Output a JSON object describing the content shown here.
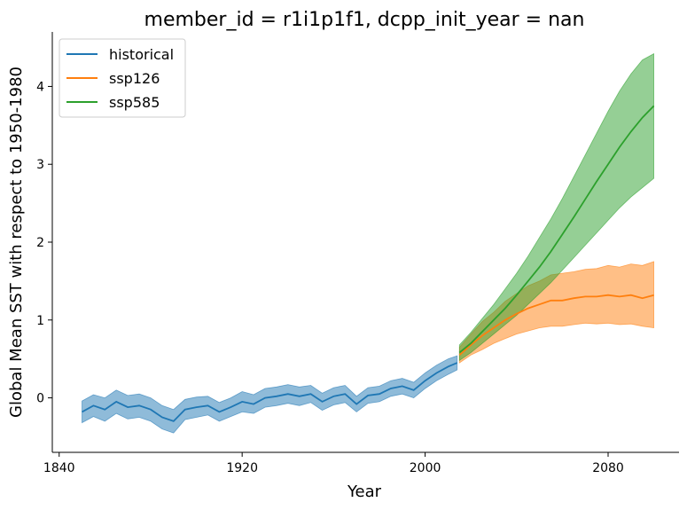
{
  "chart_data": {
    "type": "line",
    "title": "member_id = r1i1p1f1, dcpp_init_year = nan",
    "xlabel": "Year",
    "ylabel": "Global Mean SST with respect to 1950-1980",
    "xlim": [
      1837,
      2111
    ],
    "ylim": [
      -0.7,
      4.7
    ],
    "xticks": [
      1840,
      1920,
      2000,
      2080
    ],
    "yticks": [
      0,
      1,
      2,
      3,
      4
    ],
    "grid": false,
    "legend_position": "top-left",
    "series": [
      {
        "name": "historical",
        "color": "#1f77b4",
        "band_color": "#1f77b4",
        "x": [
          1850,
          1855,
          1860,
          1865,
          1870,
          1875,
          1880,
          1885,
          1890,
          1895,
          1900,
          1905,
          1910,
          1915,
          1920,
          1925,
          1930,
          1935,
          1940,
          1945,
          1950,
          1955,
          1960,
          1965,
          1970,
          1975,
          1980,
          1985,
          1990,
          1995,
          2000,
          2005,
          2010,
          2014
        ],
        "mean": [
          -0.18,
          -0.1,
          -0.15,
          -0.05,
          -0.12,
          -0.1,
          -0.15,
          -0.25,
          -0.3,
          -0.15,
          -0.12,
          -0.1,
          -0.18,
          -0.12,
          -0.05,
          -0.08,
          0.0,
          0.02,
          0.05,
          0.02,
          0.05,
          -0.05,
          0.02,
          0.05,
          -0.08,
          0.03,
          0.05,
          0.12,
          0.15,
          0.1,
          0.22,
          0.32,
          0.4,
          0.45
        ],
        "lower": [
          -0.32,
          -0.24,
          -0.3,
          -0.2,
          -0.27,
          -0.25,
          -0.3,
          -0.4,
          -0.45,
          -0.28,
          -0.25,
          -0.22,
          -0.3,
          -0.24,
          -0.18,
          -0.2,
          -0.12,
          -0.1,
          -0.07,
          -0.1,
          -0.06,
          -0.16,
          -0.09,
          -0.06,
          -0.18,
          -0.07,
          -0.05,
          0.02,
          0.05,
          0.0,
          0.12,
          0.22,
          0.3,
          0.36
        ],
        "upper": [
          -0.04,
          0.04,
          0.0,
          0.1,
          0.03,
          0.05,
          0.0,
          -0.1,
          -0.15,
          -0.02,
          0.01,
          0.02,
          -0.06,
          0.0,
          0.08,
          0.04,
          0.12,
          0.14,
          0.17,
          0.14,
          0.16,
          0.06,
          0.13,
          0.16,
          0.02,
          0.13,
          0.15,
          0.22,
          0.25,
          0.2,
          0.32,
          0.42,
          0.5,
          0.54
        ]
      },
      {
        "name": "ssp126",
        "color": "#ff7f0e",
        "band_color": "#ff7f0e",
        "x": [
          2015,
          2020,
          2025,
          2030,
          2035,
          2040,
          2045,
          2050,
          2055,
          2060,
          2065,
          2070,
          2075,
          2080,
          2085,
          2090,
          2095,
          2100
        ],
        "mean": [
          0.55,
          0.68,
          0.8,
          0.9,
          1.0,
          1.08,
          1.15,
          1.2,
          1.25,
          1.25,
          1.28,
          1.3,
          1.3,
          1.32,
          1.3,
          1.32,
          1.28,
          1.32
        ],
        "lower": [
          0.45,
          0.55,
          0.62,
          0.7,
          0.76,
          0.82,
          0.86,
          0.9,
          0.92,
          0.92,
          0.94,
          0.96,
          0.95,
          0.96,
          0.94,
          0.95,
          0.92,
          0.9
        ],
        "upper": [
          0.65,
          0.82,
          0.98,
          1.1,
          1.24,
          1.34,
          1.44,
          1.5,
          1.58,
          1.6,
          1.62,
          1.65,
          1.66,
          1.7,
          1.68,
          1.72,
          1.7,
          1.75
        ]
      },
      {
        "name": "ssp585",
        "color": "#2ca02c",
        "band_color": "#2ca02c",
        "x": [
          2015,
          2020,
          2025,
          2030,
          2035,
          2040,
          2045,
          2050,
          2055,
          2060,
          2065,
          2070,
          2075,
          2080,
          2085,
          2090,
          2095,
          2100
        ],
        "mean": [
          0.58,
          0.7,
          0.85,
          1.0,
          1.15,
          1.32,
          1.5,
          1.68,
          1.88,
          2.1,
          2.32,
          2.55,
          2.78,
          3.0,
          3.22,
          3.42,
          3.6,
          3.75
        ],
        "lower": [
          0.48,
          0.58,
          0.7,
          0.82,
          0.94,
          1.06,
          1.2,
          1.34,
          1.48,
          1.64,
          1.8,
          1.96,
          2.12,
          2.28,
          2.44,
          2.58,
          2.7,
          2.82
        ],
        "upper": [
          0.68,
          0.84,
          1.02,
          1.2,
          1.4,
          1.6,
          1.82,
          2.06,
          2.3,
          2.56,
          2.84,
          3.12,
          3.4,
          3.68,
          3.94,
          4.16,
          4.34,
          4.42
        ]
      }
    ]
  }
}
